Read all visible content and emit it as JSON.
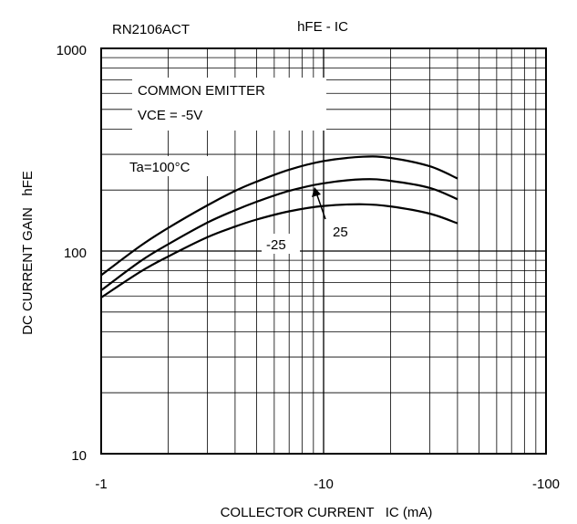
{
  "chart_data": {
    "type": "line",
    "title": "hFE - IC",
    "part_number": "RN2106ACT",
    "xlabel": "COLLECTOR CURRENT   IC (mA)",
    "ylabel": "DC CURRENT GAIN   hFE",
    "x_scale": "log",
    "y_scale": "log",
    "xlim": [
      -1,
      -100
    ],
    "ylim": [
      10,
      1000
    ],
    "x_ticks": [
      "-1",
      "-10",
      "-100"
    ],
    "y_ticks": [
      "10",
      "100",
      "1000"
    ],
    "grid": true,
    "conditions": [
      "COMMON EMITTER",
      "VCE = -5V"
    ],
    "series": [
      {
        "name": "Ta=100°C",
        "x": [
          -1,
          -1.5,
          -2,
          -3,
          -4,
          -5,
          -7,
          -10,
          -15,
          -20,
          -30,
          -40
        ],
        "y": [
          76,
          106,
          130,
          168,
          198,
          220,
          252,
          278,
          292,
          288,
          262,
          228
        ]
      },
      {
        "name": "25",
        "x": [
          -1,
          -1.5,
          -2,
          -3,
          -4,
          -5,
          -7,
          -10,
          -15,
          -20,
          -30,
          -40
        ],
        "y": [
          64,
          89,
          108,
          138,
          159,
          175,
          198,
          216,
          226,
          222,
          205,
          180
        ]
      },
      {
        "name": "-25",
        "x": [
          -1,
          -1.5,
          -2,
          -3,
          -4,
          -5,
          -7,
          -10,
          -15,
          -20,
          -30,
          -40
        ],
        "y": [
          59,
          79,
          94,
          117,
          132,
          143,
          157,
          167,
          170,
          166,
          153,
          137
        ]
      }
    ]
  }
}
